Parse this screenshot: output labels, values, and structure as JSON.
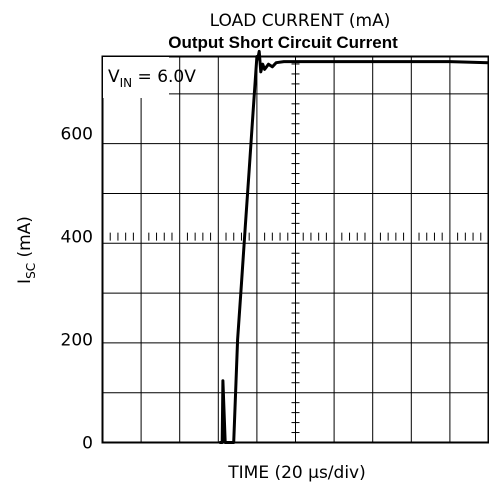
{
  "chart_data": {
    "type": "line",
    "top_label": "LOAD CURRENT (mA)",
    "title": "Output Short Circuit Current",
    "annotation": {
      "base": "V",
      "sub": "IN",
      "rest": " = 6.0V"
    },
    "ylabel": {
      "base": "I",
      "sub": "SC",
      "rest": " (mA)"
    },
    "xlabel": "TIME (20 μs/div)",
    "xlim": [
      0,
      10
    ],
    "ylim": [
      0,
      750
    ],
    "ytick_values": [
      0,
      200,
      400,
      600
    ],
    "ytick_labels": [
      "0",
      "200",
      "400",
      "600"
    ],
    "grid": true,
    "x_divisions": 10,
    "y_divisions": 7.75,
    "series": [
      {
        "x": [
          3.05,
          3.1,
          3.12,
          3.18,
          3.23,
          3.4,
          3.5,
          3.6,
          3.7,
          3.8,
          3.9,
          4.0,
          4.02,
          4.06,
          4.1,
          4.15,
          4.2,
          4.3,
          4.4,
          4.5,
          4.7,
          5.0,
          5.5,
          6.0,
          7.0,
          8.0,
          9.0,
          10.0
        ],
        "y": [
          0,
          0,
          120,
          0,
          0,
          0,
          200,
          310,
          420,
          530,
          640,
          750,
          745,
          760,
          720,
          735,
          725,
          735,
          730,
          738,
          740,
          740,
          740,
          740,
          740,
          740,
          740,
          738
        ]
      }
    ]
  }
}
